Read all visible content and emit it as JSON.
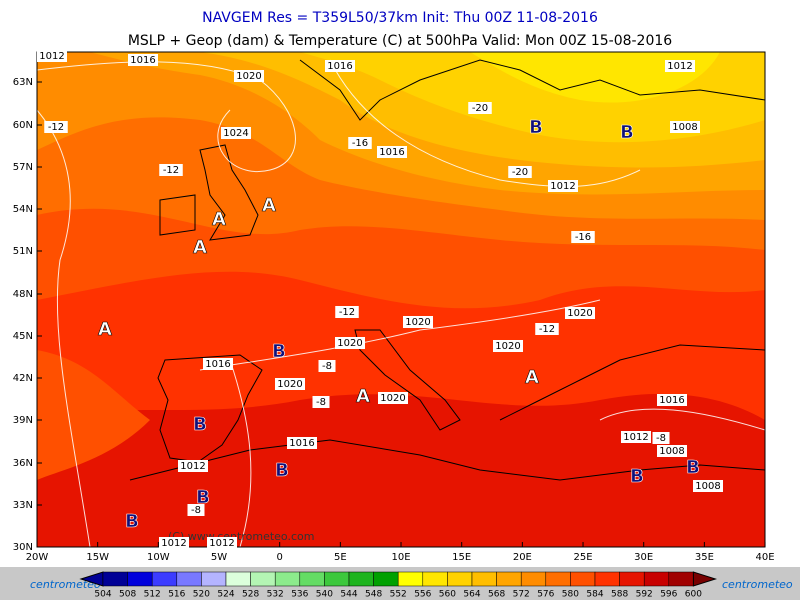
{
  "header": {
    "line1": "NAVGEM Res = T359L50/37km   Init: Thu 00Z 11-08-2016",
    "line2": "MSLP + Geop (dam) & Temperature (C) at 500hPa  Valid: Mon 00Z 15-08-2016"
  },
  "map": {
    "lat_labels": [
      "63N",
      "60N",
      "57N",
      "54N",
      "51N",
      "48N",
      "45N",
      "42N",
      "39N",
      "36N",
      "33N",
      "30N"
    ],
    "lon_labels": [
      "20W",
      "15W",
      "10W",
      "5W",
      "0",
      "5E",
      "10E",
      "15E",
      "20E",
      "25E",
      "30E",
      "35E",
      "40E"
    ],
    "isobar_labels": [
      "1012",
      "1016",
      "1020",
      "1016",
      "1012",
      "1024",
      "1016",
      "1012",
      "1008",
      "1020",
      "1020",
      "1020",
      "1020",
      "1016",
      "1020",
      "1020",
      "1016",
      "1016",
      "1012",
      "1008",
      "1008",
      "1012",
      "1012",
      "1012"
    ],
    "temperature_labels": [
      "-12",
      "-12",
      "-16",
      "-20",
      "-20",
      "-16",
      "-12",
      "-12",
      "-8",
      "-8",
      "-8",
      "-8"
    ],
    "pressure_centers": [
      "B",
      "B",
      "A",
      "A",
      "A",
      "A",
      "B",
      "A",
      "A",
      "B",
      "B",
      "B",
      "B",
      "B",
      "B"
    ],
    "copyright": "(C) www.centrometeo.com"
  },
  "colorbar": {
    "values": [
      504,
      508,
      512,
      516,
      520,
      524,
      528,
      532,
      536,
      540,
      544,
      548,
      552,
      556,
      560,
      564,
      568,
      572,
      576,
      580,
      584,
      588,
      592,
      596,
      600
    ],
    "colors": [
      "#000096",
      "#0000dc",
      "#3c3cff",
      "#7878ff",
      "#b4b4ff",
      "#dcffdc",
      "#b4f5b4",
      "#8ceb8c",
      "#64dc64",
      "#3cc83c",
      "#1eb41e",
      "#00a000",
      "#ffff00",
      "#ffe600",
      "#ffd200",
      "#ffbe00",
      "#ffa500",
      "#ff8c00",
      "#ff6e00",
      "#ff5000",
      "#ff3200",
      "#e61400",
      "#c80000",
      "#a00000",
      "#780000"
    ],
    "logo": "centrometeo"
  }
}
